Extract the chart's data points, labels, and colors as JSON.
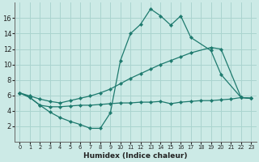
{
  "xlabel": "Humidex (Indice chaleur)",
  "bg_color": "#cceae6",
  "grid_color": "#aad4cf",
  "line_color": "#1e7a6e",
  "xlim": [
    -0.5,
    23.5
  ],
  "ylim": [
    0,
    18
  ],
  "xticks": [
    0,
    1,
    2,
    3,
    4,
    5,
    6,
    7,
    8,
    9,
    10,
    11,
    12,
    13,
    14,
    15,
    16,
    17,
    18,
    19,
    20,
    21,
    22,
    23
  ],
  "yticks": [
    2,
    4,
    6,
    8,
    10,
    12,
    14,
    16
  ],
  "series1_x": [
    0,
    1,
    2,
    3,
    4,
    5,
    6,
    7,
    8,
    9,
    10,
    11,
    12,
    13,
    14,
    15,
    16,
    17,
    19,
    20,
    22,
    23
  ],
  "series1_y": [
    6.3,
    5.7,
    4.7,
    3.8,
    3.1,
    2.6,
    2.2,
    1.7,
    1.7,
    3.7,
    10.5,
    14.0,
    15.2,
    17.2,
    16.3,
    15.1,
    16.3,
    13.5,
    11.8,
    8.7,
    5.7,
    5.6
  ],
  "series2_x": [
    0,
    1,
    2,
    3,
    4,
    5,
    6,
    7,
    8,
    9,
    10,
    11,
    12,
    13,
    14,
    15,
    16,
    17,
    19,
    20,
    22,
    23
  ],
  "series2_y": [
    6.3,
    5.9,
    5.5,
    5.2,
    5.0,
    5.3,
    5.6,
    5.9,
    6.3,
    6.8,
    7.5,
    8.2,
    8.8,
    9.4,
    10.0,
    10.5,
    11.0,
    11.5,
    12.2,
    12.0,
    5.7,
    5.6
  ],
  "series3_x": [
    0,
    1,
    2,
    3,
    4,
    5,
    6,
    7,
    8,
    9,
    10,
    11,
    12,
    13,
    14,
    15,
    16,
    17,
    18,
    19,
    20,
    21,
    22,
    23
  ],
  "series3_y": [
    6.3,
    5.7,
    4.7,
    4.5,
    4.5,
    4.6,
    4.7,
    4.7,
    4.8,
    4.9,
    5.0,
    5.0,
    5.1,
    5.1,
    5.2,
    4.9,
    5.1,
    5.2,
    5.3,
    5.3,
    5.4,
    5.5,
    5.7,
    5.6
  ]
}
